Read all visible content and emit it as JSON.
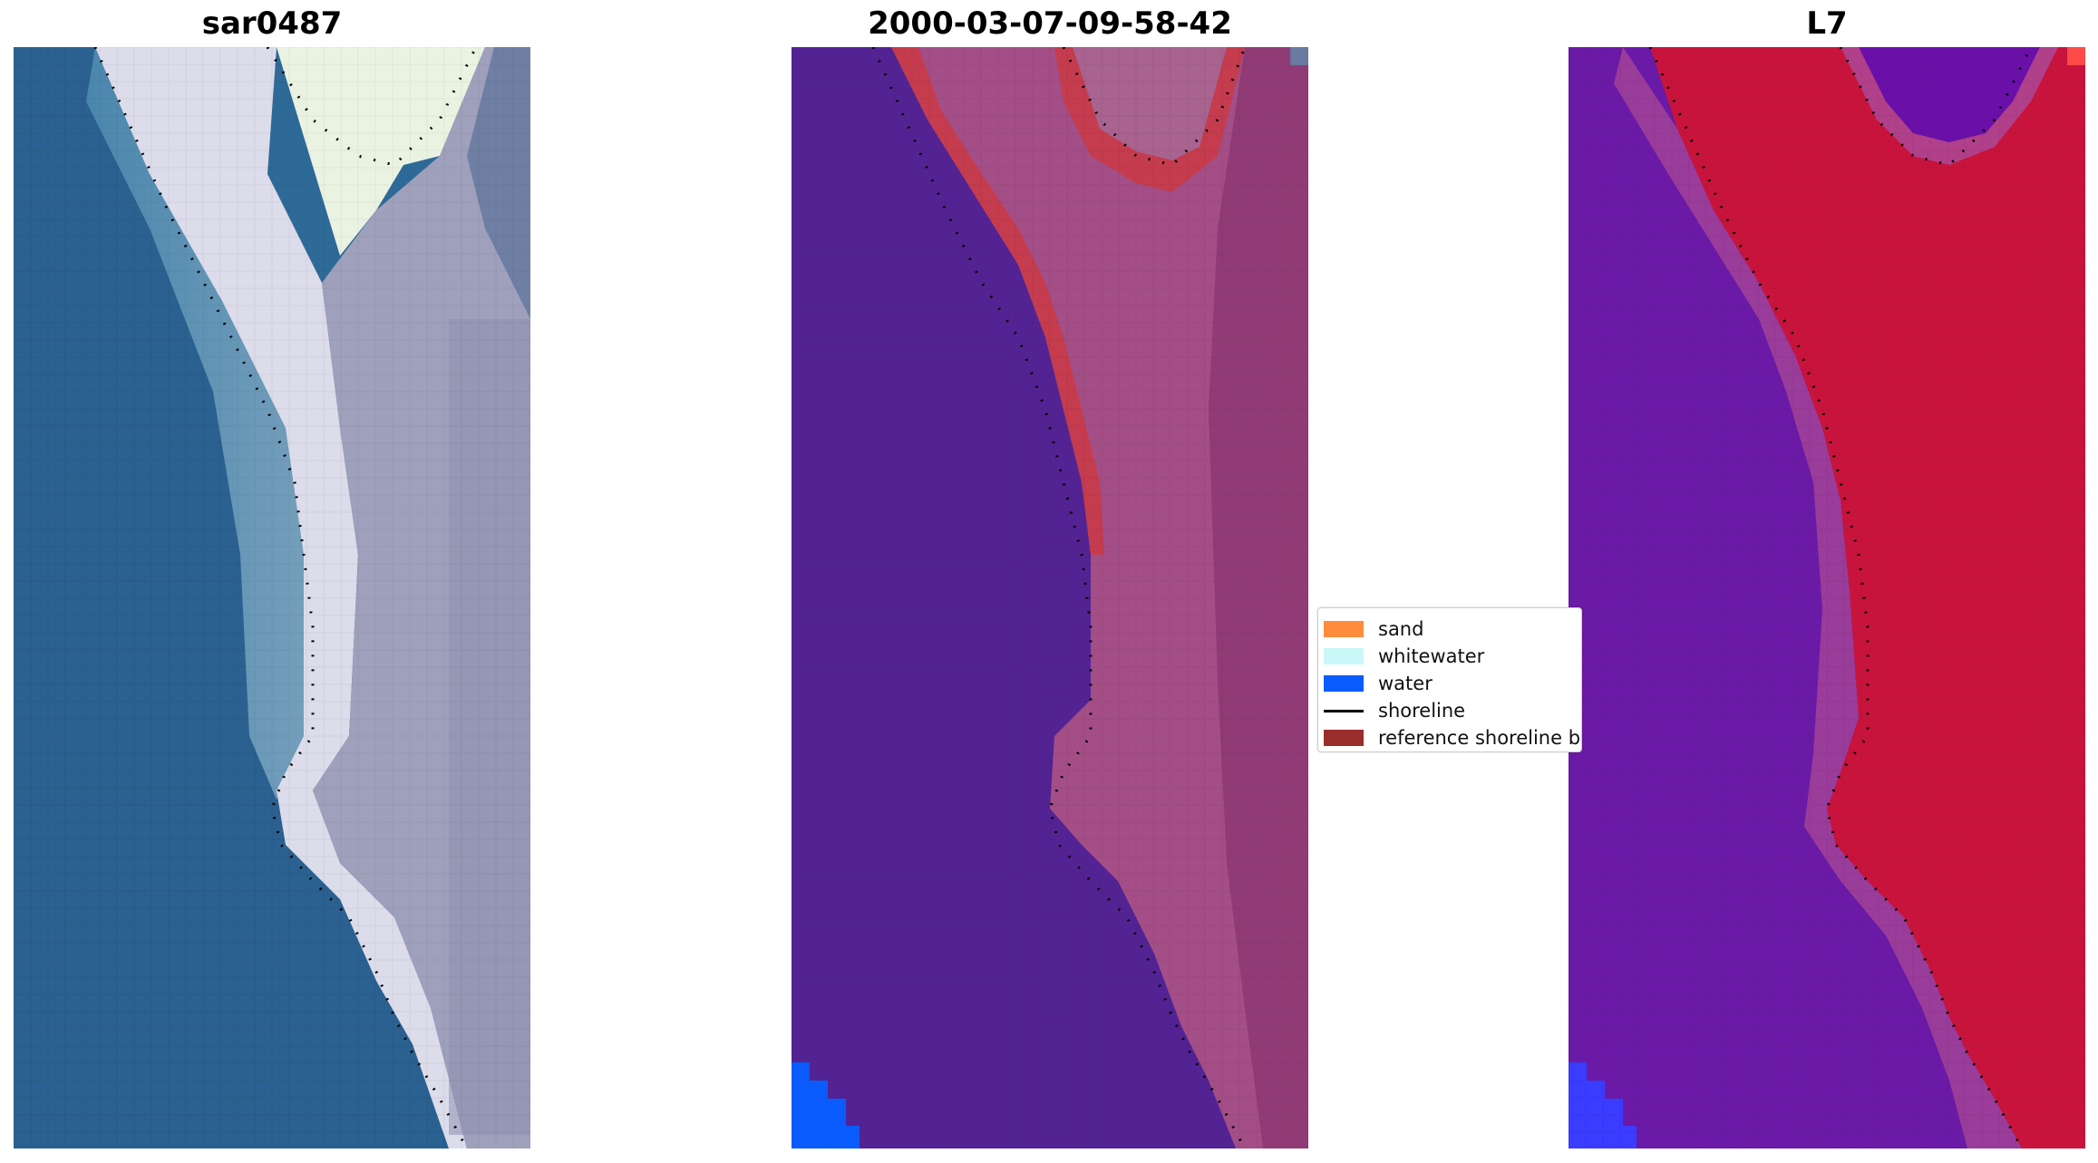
{
  "panels": [
    {
      "title": "sar0487"
    },
    {
      "title": "2000-03-07-09-58-42"
    },
    {
      "title": "L7"
    }
  ],
  "legend": {
    "items": [
      {
        "label": "sand",
        "color": "#ff8c3c",
        "kind": "patch",
        "icon": "sand-swatch"
      },
      {
        "label": "whitewater",
        "color": "#c8f8f8",
        "kind": "patch",
        "icon": "whitewater-swatch"
      },
      {
        "label": "water",
        "color": "#0a5cff",
        "kind": "patch",
        "icon": "water-swatch"
      },
      {
        "label": "shoreline",
        "color": "#000000",
        "kind": "line",
        "icon": "shoreline-line"
      },
      {
        "label": "reference shoreline buffer",
        "color": "#9b2c2c",
        "kind": "patch",
        "icon": "buffer-swatch"
      }
    ]
  },
  "colors": {
    "ocean": "#2e6d9a",
    "classified_water": "#532394",
    "buffer_overlay": "#c0364a",
    "land_overlay": "#a45088",
    "ndwi_water": "#6a1aa6",
    "ndwi_land": "#c8143c"
  }
}
